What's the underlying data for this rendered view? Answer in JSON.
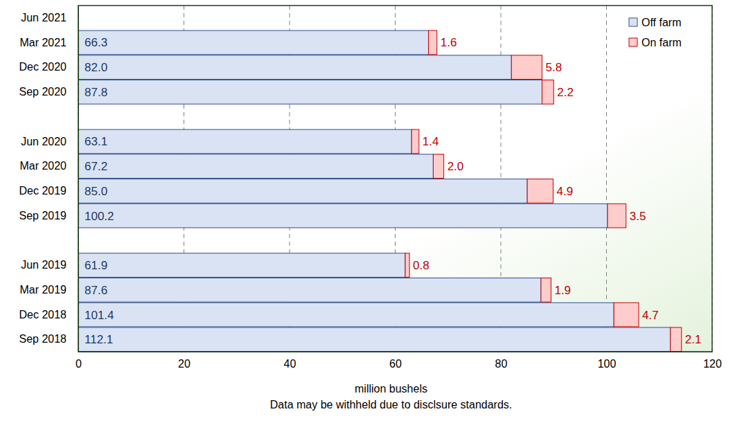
{
  "chart_data": {
    "type": "bar",
    "orientation": "horizontal",
    "stacked": true,
    "data_labels": true,
    "grid": true,
    "legend": "upper right",
    "x_label": "million bushels",
    "annotations": [
      "Data may be withheld due to disclsure standards."
    ],
    "categories": [
      "Jun 2021",
      "Mar 2021",
      "Dec 2020",
      "Sep 2020",
      null,
      "Jun 2020",
      "Mar 2020",
      "Dec 2019",
      "Sep 2019",
      null,
      "Jun 2019",
      "Mar 2019",
      "Dec 2018",
      "Sep 2018"
    ],
    "series": [
      {
        "name": "Off farm",
        "color": "#dae3f3",
        "values": [
          null,
          66.3,
          82.0,
          87.8,
          null,
          63.1,
          67.2,
          85.0,
          100.2,
          null,
          61.9,
          87.6,
          101.4,
          112.1
        ],
        "value_labels": [
          null,
          "66.3",
          "82.0",
          "87.8",
          null,
          "63.1",
          "67.2",
          "85.0",
          "100.2",
          null,
          "61.9",
          "87.6",
          "101.4",
          "112.1"
        ]
      },
      {
        "name": "On farm",
        "color": "#ffcccc",
        "values": [
          null,
          1.6,
          5.8,
          2.2,
          null,
          1.4,
          2.0,
          4.9,
          3.5,
          null,
          0.8,
          1.9,
          4.7,
          2.1
        ],
        "value_labels": [
          null,
          "1.6",
          "5.8",
          "2.2",
          null,
          "1.4",
          "2.0",
          "4.9",
          "3.5",
          null,
          "0.8",
          "1.9",
          "4.7",
          "2.1"
        ]
      }
    ],
    "xlim": [
      0,
      120
    ],
    "xticks": [
      0,
      20,
      40,
      60,
      80,
      100,
      120
    ]
  }
}
